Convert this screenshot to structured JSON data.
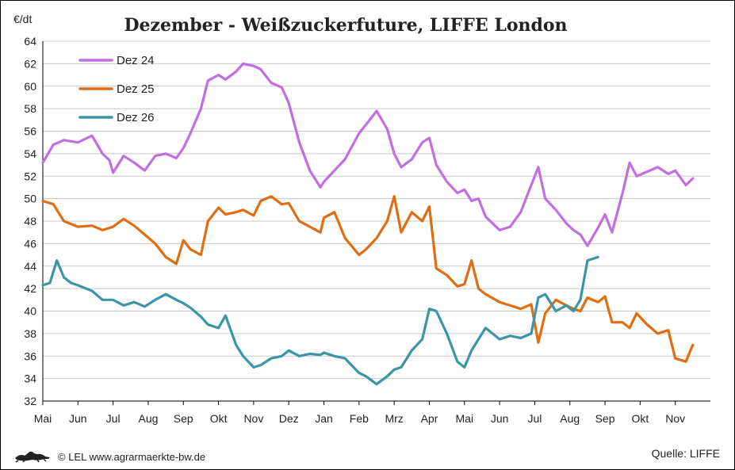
{
  "colors": {
    "dez24": "#c26ee3",
    "dez25": "#e06d12",
    "dez26": "#3a96a6",
    "axis": "#000000"
  },
  "footer": {
    "copyright": "© LEL www.agrarmaerkte-bw.de",
    "source": "Quelle: LIFFE",
    "logo_icon": "lion-emblem-icon"
  },
  "chart_data": {
    "type": "line",
    "title": "Dezember - Weißzuckerfuture, LIFFE London",
    "ylabel": "€/dt",
    "xlabel": "",
    "ylim": [
      32,
      64
    ],
    "yticks": [
      32,
      34,
      36,
      38,
      40,
      42,
      44,
      46,
      48,
      50,
      52,
      54,
      56,
      58,
      60,
      62,
      64
    ],
    "xlim": [
      0,
      19
    ],
    "xtick_labels": [
      "Mai",
      "Jun",
      "Jul",
      "Aug",
      "Sep",
      "Okt",
      "Nov",
      "Dez",
      "Jan",
      "Feb",
      "Mrz",
      "Apr",
      "Mai",
      "Jun",
      "Jul",
      "Aug",
      "Sep",
      "Okt",
      "Nov"
    ],
    "grid": "horizontal",
    "legend": "top-left",
    "x_unit": "months",
    "series": [
      {
        "name": "Dez 24",
        "color": "#c26ee3",
        "x": [
          0,
          0.3,
          0.6,
          1,
          1.4,
          1.7,
          1.9,
          2.0,
          2.3,
          2.6,
          2.9,
          3.2,
          3.5,
          3.8,
          4.0,
          4.2,
          4.5,
          4.7,
          5.0,
          5.2,
          5.5,
          5.7,
          6.0,
          6.2,
          6.5,
          6.8,
          7.0,
          7.3,
          7.6,
          7.9,
          8.0,
          8.3,
          8.6,
          9.0,
          9.2,
          9.5,
          9.8,
          10.0,
          10.2,
          10.5,
          10.8,
          11.0,
          11.2,
          11.5,
          11.8,
          12.0,
          12.2,
          12.4,
          12.6,
          13.0,
          13.3,
          13.6,
          13.9,
          14.1,
          14.3,
          14.6,
          14.9,
          15.1,
          15.3,
          15.5,
          15.8,
          16.0,
          16.2,
          16.5,
          16.7,
          16.9,
          17.2,
          17.5,
          17.8,
          18.0,
          18.3,
          18.5
        ],
        "values": [
          53.2,
          54.8,
          55.2,
          55.0,
          55.6,
          54.0,
          53.4,
          52.3,
          53.8,
          53.2,
          52.5,
          53.8,
          54.0,
          53.6,
          54.5,
          55.8,
          58.0,
          60.5,
          61.0,
          60.6,
          61.3,
          62.0,
          61.8,
          61.5,
          60.3,
          59.9,
          58.5,
          55.0,
          52.5,
          51.0,
          51.5,
          52.5,
          53.5,
          55.8,
          56.6,
          57.8,
          56.2,
          54.0,
          52.8,
          53.5,
          55.0,
          55.4,
          53.0,
          51.5,
          50.5,
          50.8,
          49.8,
          50.0,
          48.4,
          47.2,
          47.5,
          48.8,
          51.2,
          52.8,
          50.0,
          49.0,
          47.8,
          47.2,
          46.8,
          45.8,
          47.4,
          48.6,
          47.0,
          50.5,
          53.2,
          52.0,
          52.4,
          52.8,
          52.2,
          52.5,
          51.2,
          51.8
        ]
      },
      {
        "name": "Dez 25",
        "color": "#e06d12",
        "x": [
          0,
          0.3,
          0.6,
          1,
          1.4,
          1.7,
          2.0,
          2.3,
          2.6,
          2.9,
          3.2,
          3.5,
          3.8,
          4.0,
          4.2,
          4.5,
          4.7,
          5.0,
          5.2,
          5.5,
          5.7,
          6.0,
          6.2,
          6.5,
          6.8,
          7.0,
          7.3,
          7.6,
          7.9,
          8.0,
          8.3,
          8.6,
          9.0,
          9.2,
          9.5,
          9.8,
          10.0,
          10.2,
          10.5,
          10.8,
          11.0,
          11.2,
          11.5,
          11.8,
          12.0,
          12.2,
          12.4,
          12.6,
          13.0,
          13.3,
          13.6,
          13.9,
          14.1,
          14.3,
          14.6,
          14.9,
          15.1,
          15.3,
          15.5,
          15.8,
          16.0,
          16.2,
          16.5,
          16.7,
          16.9,
          17.2,
          17.5,
          17.8,
          18.0,
          18.3,
          18.5
        ],
        "values": [
          49.8,
          49.5,
          48.0,
          47.5,
          47.6,
          47.2,
          47.5,
          48.2,
          47.6,
          46.8,
          46.0,
          44.8,
          44.2,
          46.3,
          45.5,
          45.0,
          48.0,
          49.2,
          48.6,
          48.8,
          49.0,
          48.5,
          49.8,
          50.2,
          49.5,
          49.6,
          48.0,
          47.5,
          47.0,
          48.3,
          48.8,
          46.5,
          45.0,
          45.5,
          46.5,
          48.0,
          50.2,
          47.0,
          48.8,
          48.0,
          49.3,
          43.8,
          43.2,
          42.2,
          42.4,
          44.5,
          42.0,
          41.5,
          40.8,
          40.5,
          40.2,
          40.6,
          37.2,
          39.8,
          41.0,
          40.5,
          40.2,
          40.0,
          41.2,
          40.8,
          41.3,
          39.0,
          39.0,
          38.5,
          39.8,
          38.8,
          38.0,
          38.3,
          35.8,
          35.5,
          37.0
        ]
      },
      {
        "name": "Dez 26",
        "color": "#3a96a6",
        "x": [
          0,
          0.2,
          0.4,
          0.6,
          0.8,
          1,
          1.4,
          1.7,
          2.0,
          2.3,
          2.6,
          2.9,
          3.2,
          3.5,
          3.8,
          4.0,
          4.2,
          4.5,
          4.7,
          5.0,
          5.2,
          5.5,
          5.7,
          6.0,
          6.2,
          6.5,
          6.8,
          7.0,
          7.3,
          7.6,
          7.9,
          8.0,
          8.3,
          8.6,
          9.0,
          9.2,
          9.5,
          9.8,
          10.0,
          10.2,
          10.5,
          10.8,
          11.0,
          11.2,
          11.5,
          11.8,
          12.0,
          12.2,
          12.4,
          12.6,
          13.0,
          13.3,
          13.6,
          13.9,
          14.1,
          14.3,
          14.6,
          14.9,
          15.1,
          15.3,
          15.5,
          15.8
        ],
        "values": [
          42.3,
          42.5,
          44.5,
          43.0,
          42.5,
          42.3,
          41.8,
          41.0,
          41.0,
          40.5,
          40.8,
          40.4,
          41.0,
          41.5,
          41.0,
          40.7,
          40.3,
          39.5,
          38.8,
          38.5,
          39.6,
          37.0,
          36.0,
          35.0,
          35.2,
          35.8,
          36.0,
          36.5,
          36.0,
          36.2,
          36.1,
          36.3,
          36.0,
          35.8,
          34.5,
          34.2,
          33.5,
          34.2,
          34.8,
          35.0,
          36.5,
          37.5,
          40.2,
          40.0,
          38.0,
          35.5,
          35.0,
          36.5,
          37.5,
          38.5,
          37.5,
          37.8,
          37.6,
          38.0,
          41.2,
          41.5,
          40.0,
          40.5,
          40.0,
          41.0,
          44.5,
          44.8
        ]
      }
    ]
  }
}
